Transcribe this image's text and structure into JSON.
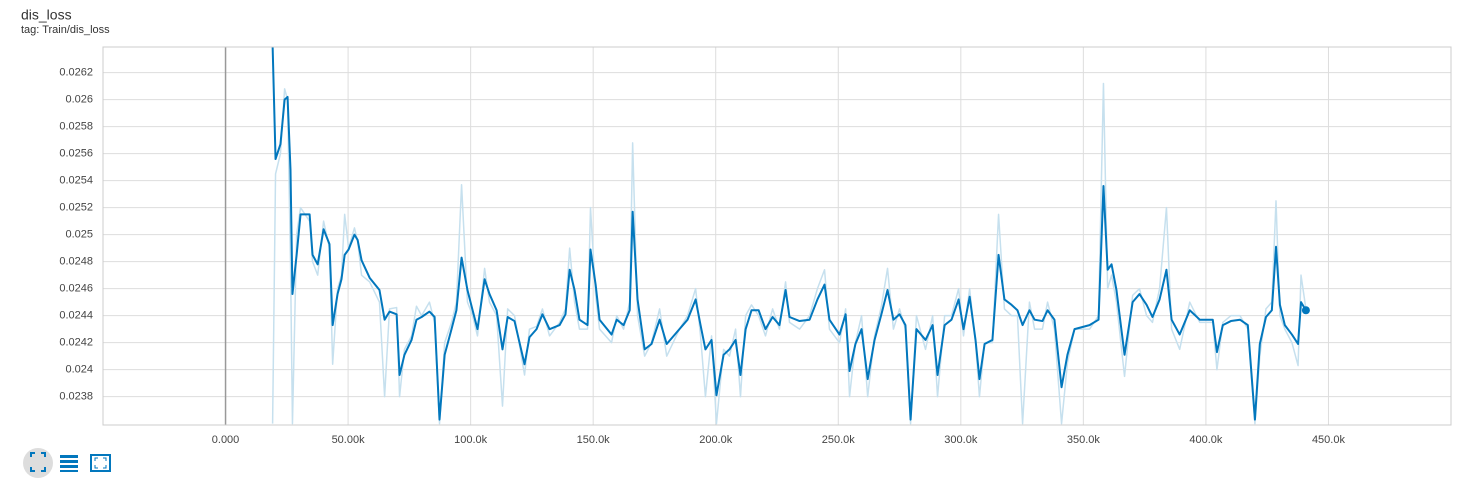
{
  "chart_data": {
    "type": "line",
    "title": "dis_loss",
    "subtitle": "tag: Train/dis_loss",
    "xlim": [
      -50000,
      500000
    ],
    "ylim": [
      0.02359,
      0.02639
    ],
    "grid": true,
    "xticks": [
      {
        "value": 0,
        "label": "0.000"
      },
      {
        "value": 50000,
        "label": "50.00k"
      },
      {
        "value": 100000,
        "label": "100.0k"
      },
      {
        "value": 150000,
        "label": "150.0k"
      },
      {
        "value": 200000,
        "label": "200.0k"
      },
      {
        "value": 250000,
        "label": "250.0k"
      },
      {
        "value": 300000,
        "label": "300.0k"
      },
      {
        "value": 350000,
        "label": "350.0k"
      },
      {
        "value": 400000,
        "label": "400.0k"
      },
      {
        "value": 450000,
        "label": "450.0k"
      }
    ],
    "yticks": [
      0.0238,
      0.024,
      0.0242,
      0.0244,
      0.0246,
      0.0248,
      0.025,
      0.0252,
      0.0254,
      0.0256,
      0.0258,
      0.026,
      0.0262
    ],
    "x": [
      19200,
      20400,
      22400,
      24100,
      25300,
      26500,
      27300,
      29000,
      30600,
      34300,
      35500,
      37600,
      40000,
      42400,
      43700,
      45700,
      47300,
      48600,
      50200,
      52600,
      53900,
      55500,
      58800,
      62800,
      64900,
      66900,
      69800,
      71000,
      73000,
      75900,
      77900,
      80000,
      83200,
      85300,
      87300,
      89400,
      92200,
      94200,
      96300,
      98700,
      100800,
      102800,
      105700,
      107700,
      110600,
      113000,
      115100,
      117900,
      122000,
      124000,
      126900,
      129300,
      132200,
      136300,
      138700,
      140400,
      142400,
      144400,
      147700,
      148900,
      151000,
      152600,
      157500,
      159600,
      162400,
      164900,
      166100,
      168100,
      171000,
      173800,
      177100,
      180000,
      185200,
      188500,
      191800,
      193800,
      195800,
      198300,
      200300,
      203200,
      205600,
      208100,
      210100,
      212200,
      214600,
      217500,
      220300,
      223200,
      226000,
      228500,
      230100,
      234200,
      238300,
      241500,
      244400,
      246400,
      250500,
      253000,
      254600,
      257000,
      259500,
      262000,
      264800,
      267600,
      270100,
      272500,
      275000,
      277400,
      279500,
      281900,
      285600,
      288500,
      290500,
      293400,
      296200,
      299100,
      301100,
      303600,
      306000,
      307600,
      309700,
      312900,
      315400,
      317800,
      320700,
      323100,
      325200,
      328000,
      330100,
      333300,
      335400,
      338200,
      341100,
      343500,
      346400,
      352500,
      356200,
      358200,
      359900,
      361500,
      363500,
      366800,
      370100,
      372900,
      375800,
      378200,
      381100,
      383900,
      386000,
      389300,
      393400,
      397500,
      402800,
      404500,
      406900,
      410200,
      413900,
      417100,
      420000,
      422000,
      424500,
      426900,
      428600,
      430200,
      432200,
      435100,
      437600,
      438800,
      440800
    ],
    "series": [
      {
        "color": "#c6e0ee",
        "values": [
          0.0236,
          0.02545,
          0.0256,
          0.02608,
          0.026,
          0.0248,
          0.0236,
          0.025,
          0.0252,
          0.0251,
          0.0248,
          0.0247,
          0.0251,
          0.0249,
          0.02404,
          0.0246,
          0.0247,
          0.02515,
          0.0249,
          0.02505,
          0.02495,
          0.0247,
          0.02465,
          0.0245,
          0.0238,
          0.02445,
          0.02446,
          0.0238,
          0.02415,
          0.02425,
          0.02447,
          0.0244,
          0.0245,
          0.02435,
          0.0236,
          0.0242,
          0.02435,
          0.0245,
          0.02537,
          0.0245,
          0.0244,
          0.02425,
          0.02475,
          0.0245,
          0.0244,
          0.02373,
          0.02445,
          0.0244,
          0.02396,
          0.0243,
          0.02432,
          0.02445,
          0.02425,
          0.02435,
          0.02445,
          0.0249,
          0.0245,
          0.0243,
          0.0243,
          0.0252,
          0.02455,
          0.0243,
          0.0242,
          0.0244,
          0.0243,
          0.0245,
          0.02568,
          0.0244,
          0.0241,
          0.0242,
          0.02445,
          0.0241,
          0.0243,
          0.0244,
          0.0246,
          0.02425,
          0.0238,
          0.02425,
          0.0236,
          0.02415,
          0.0241,
          0.0243,
          0.0238,
          0.0244,
          0.02448,
          0.0244,
          0.02425,
          0.02445,
          0.0243,
          0.02465,
          0.02435,
          0.0243,
          0.0244,
          0.0246,
          0.02474,
          0.0243,
          0.0242,
          0.02445,
          0.0238,
          0.0242,
          0.0244,
          0.0238,
          0.02425,
          0.02447,
          0.02475,
          0.0243,
          0.02445,
          0.0243,
          0.0236,
          0.0244,
          0.02415,
          0.0244,
          0.0238,
          0.0244,
          0.0244,
          0.0246,
          0.02425,
          0.0246,
          0.0242,
          0.0238,
          0.0242,
          0.0242,
          0.02515,
          0.02445,
          0.0244,
          0.0244,
          0.0236,
          0.0245,
          0.0243,
          0.0243,
          0.0245,
          0.0243,
          0.0236,
          0.02405,
          0.0243,
          0.0243,
          0.0244,
          0.02612,
          0.0246,
          0.0247,
          0.0245,
          0.02395,
          0.02455,
          0.0246,
          0.0244,
          0.02435,
          0.0246,
          0.0252,
          0.0243,
          0.02415,
          0.0245,
          0.02435,
          0.02435,
          0.024,
          0.02435,
          0.0244,
          0.0244,
          0.0243,
          0.0236,
          0.0241,
          0.02445,
          0.0245,
          0.02525,
          0.0244,
          0.0243,
          0.0242,
          0.02403,
          0.0247,
          0.02445
        ]
      },
      {
        "color": "#0277bd",
        "values": [
          0.0264,
          0.02556,
          0.02567,
          0.026,
          0.02602,
          0.02548,
          0.02456,
          0.02485,
          0.02515,
          0.02515,
          0.02485,
          0.02478,
          0.02504,
          0.02493,
          0.02433,
          0.02456,
          0.02467,
          0.02485,
          0.02489,
          0.025,
          0.02496,
          0.02481,
          0.02468,
          0.02459,
          0.02437,
          0.02443,
          0.02441,
          0.02396,
          0.02411,
          0.02422,
          0.02437,
          0.02439,
          0.02443,
          0.02439,
          0.02363,
          0.02411,
          0.0243,
          0.02444,
          0.02483,
          0.02459,
          0.02444,
          0.0243,
          0.02467,
          0.02456,
          0.02444,
          0.02415,
          0.02439,
          0.02436,
          0.02404,
          0.02424,
          0.0243,
          0.02441,
          0.0243,
          0.02433,
          0.02441,
          0.02474,
          0.02459,
          0.02437,
          0.02433,
          0.02489,
          0.02463,
          0.02437,
          0.02426,
          0.02437,
          0.02433,
          0.02444,
          0.02517,
          0.02452,
          0.02415,
          0.02419,
          0.02437,
          0.02419,
          0.0243,
          0.02437,
          0.02452,
          0.02433,
          0.02415,
          0.02422,
          0.02381,
          0.02411,
          0.02415,
          0.02422,
          0.02396,
          0.0243,
          0.02444,
          0.02444,
          0.0243,
          0.02439,
          0.02433,
          0.02459,
          0.02439,
          0.02436,
          0.02437,
          0.02452,
          0.02463,
          0.02437,
          0.02426,
          0.02441,
          0.02399,
          0.02419,
          0.0243,
          0.02393,
          0.02422,
          0.02441,
          0.02459,
          0.02437,
          0.02441,
          0.02433,
          0.02363,
          0.0243,
          0.02422,
          0.02433,
          0.02396,
          0.02433,
          0.02437,
          0.02452,
          0.0243,
          0.02454,
          0.02422,
          0.02393,
          0.02419,
          0.02422,
          0.02485,
          0.02452,
          0.02448,
          0.02444,
          0.02433,
          0.02444,
          0.02437,
          0.02436,
          0.02444,
          0.02437,
          0.02387,
          0.02411,
          0.0243,
          0.02433,
          0.02437,
          0.02536,
          0.02474,
          0.02478,
          0.02459,
          0.02411,
          0.0245,
          0.02456,
          0.02448,
          0.02439,
          0.02452,
          0.02474,
          0.02437,
          0.02426,
          0.02444,
          0.02437,
          0.02437,
          0.02413,
          0.02433,
          0.02436,
          0.02437,
          0.02433,
          0.02363,
          0.02419,
          0.02439,
          0.02444,
          0.02491,
          0.02448,
          0.02433,
          0.02426,
          0.02419,
          0.0245,
          0.02444
        ]
      }
    ]
  }
}
